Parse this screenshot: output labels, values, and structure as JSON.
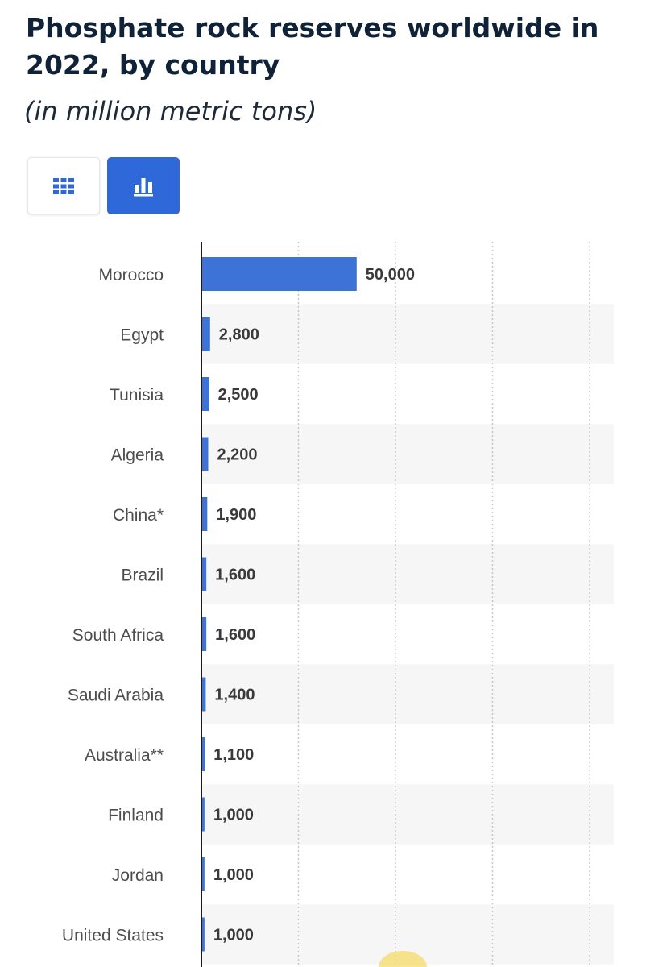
{
  "header": {
    "title": "Phosphate rock reserves worldwide in 2022, by country",
    "subtitle": "(in million metric tons)"
  },
  "view_switcher": {
    "table_icon": "grid-icon",
    "chart_icon": "bar-chart-icon",
    "active": "chart"
  },
  "colors": {
    "bar": "#3d72d6",
    "accent": "#2f68d8",
    "title": "#0f2238",
    "stripe": "#f6f6f6"
  },
  "chart_data": {
    "type": "bar",
    "orientation": "horizontal",
    "categories": [
      "Morocco",
      "Egypt",
      "Tunisia",
      "Algeria",
      "China*",
      "Brazil",
      "South Africa",
      "Saudi Arabia",
      "Australia**",
      "Finland",
      "Jordan",
      "United States"
    ],
    "values": [
      50000,
      2800,
      2500,
      2200,
      1900,
      1600,
      1600,
      1400,
      1100,
      1000,
      1000,
      1000
    ],
    "value_labels": [
      "50,000",
      "2,800",
      "2,500",
      "2,200",
      "1,900",
      "1,600",
      "1,600",
      "1,400",
      "1,100",
      "1,000",
      "1,000",
      "1,000"
    ],
    "title": "Phosphate rock reserves worldwide in 2022, by country",
    "xlabel": "",
    "ylabel": "",
    "xlim": [
      0,
      125000
    ],
    "grid": true,
    "legend": "none"
  }
}
